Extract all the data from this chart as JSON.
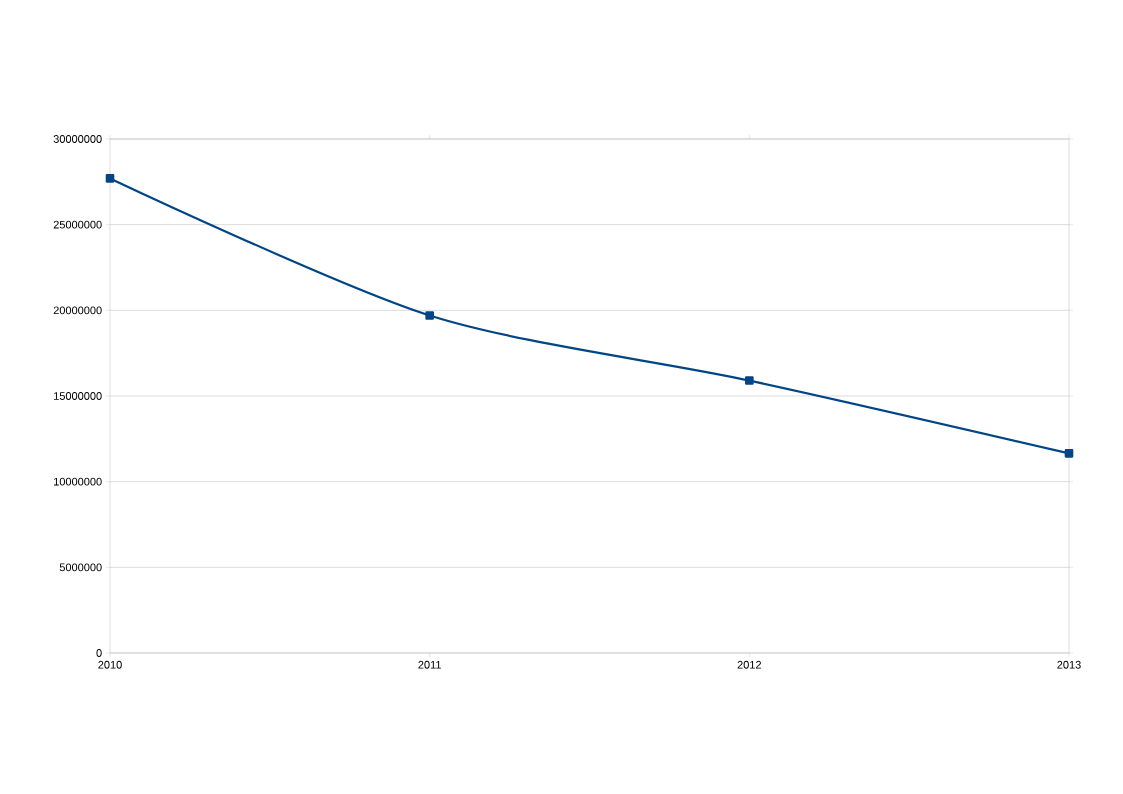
{
  "chart_data": {
    "type": "line",
    "categories": [
      "2010",
      "2011",
      "2012",
      "2013"
    ],
    "series": [
      {
        "color": "#004586",
        "values": [
          27700000,
          19700000,
          15900000,
          11650000
        ]
      }
    ],
    "ylim": [
      0,
      30000000
    ],
    "yticks": [
      0,
      5000000,
      10000000,
      15000000,
      20000000,
      25000000,
      30000000
    ],
    "grid": "y",
    "marker": "square",
    "line_style": "solid"
  }
}
